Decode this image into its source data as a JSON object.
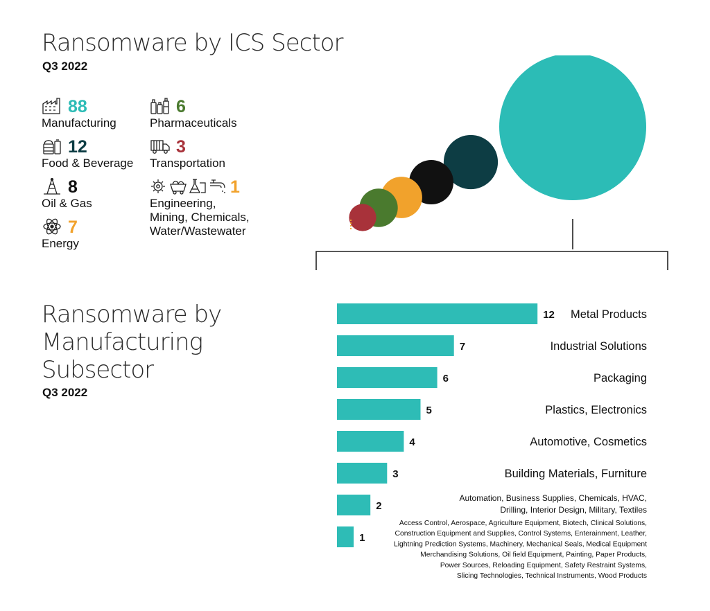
{
  "colors": {
    "teal": "#2cbcb6",
    "dark_teal": "#0d3d44",
    "black": "#111111",
    "green": "#4a7a2e",
    "red": "#a8323a",
    "orange": "#f1a22c",
    "bar": "#2ebcb6"
  },
  "sector_panel": {
    "title": "Ransomware by ICS Sector",
    "subtitle": "Q3 2022",
    "items": [
      {
        "value": "88",
        "name": "Manufacturing",
        "color": "#2cbcb6",
        "icon": "factory-icon"
      },
      {
        "value": "12",
        "name": "Food & Beverage",
        "color": "#0d3d44",
        "icon": "food-icon"
      },
      {
        "value": "8",
        "name": "Oil & Gas",
        "color": "#111111",
        "icon": "oil-rig-icon"
      },
      {
        "value": "7",
        "name": "Energy",
        "color": "#f1a22c",
        "icon": "atom-icon"
      },
      {
        "value": "6",
        "name": "Pharmaceuticals",
        "color": "#4a7a2e",
        "icon": "pharma-icon"
      },
      {
        "value": "3",
        "name": "Transportation",
        "color": "#a8323a",
        "icon": "truck-icon"
      },
      {
        "value": "1",
        "name_lines": [
          "Engineering,",
          "Mining, Chemicals,",
          "Water/Wastewater"
        ],
        "color": "#f1a22c",
        "icon": "engineering-icons"
      }
    ]
  },
  "subsector_panel": {
    "title_lines": [
      "Ransomware by",
      "Manufacturing",
      "Subsector"
    ],
    "subtitle": "Q3 2022"
  },
  "chart_data": [
    {
      "type": "scatter",
      "description_style": "bubble",
      "points": [
        {
          "label": "Manufacturing",
          "value": 88,
          "color": "#2cbcb6"
        },
        {
          "label": "Food & Beverage",
          "value": 12,
          "color": "#0d3d44"
        },
        {
          "label": "Oil & Gas",
          "value": 8,
          "color": "#111111"
        },
        {
          "label": "Energy",
          "value": 7,
          "color": "#f1a22c"
        },
        {
          "label": "Pharmaceuticals",
          "value": 6,
          "color": "#4a7a2e"
        },
        {
          "label": "Transportation",
          "value": 3,
          "color": "#a8323a"
        },
        {
          "label": "Engineering, Mining, Chemicals, Water/Wastewater",
          "value": 1,
          "color": "#f1a22c"
        }
      ]
    },
    {
      "type": "bar",
      "orientation": "horizontal",
      "categories": [
        "Metal Products",
        "Industrial Solutions",
        "Packaging",
        "Plastics, Electronics",
        "Automotive, Cosmetics",
        "Building Materials, Furniture",
        "Automation, Business Supplies, Chemicals, HVAC, Drilling, Interior Design, Military, Textiles",
        "Access Control, Aerospace, Agriculture Equipment, Biotech, Clinical Solutions, Construction Equipment and Supplies, Control Systems, Enterainment, Leather, Lightning Prediction Systems, Machinery, Mechanical Seals, Medical Equipment Merchandising Solutions, Oil field Equipment, Painting, Paper Products, Power Sources, Reloading Equipment, Safety Restraint Systems, Slicing Technologies, Technical Instruments, Wood Products"
      ],
      "values": [
        12,
        7,
        6,
        5,
        4,
        3,
        2,
        1
      ],
      "label_lines": [
        [
          "Metal Products"
        ],
        [
          "Industrial Solutions"
        ],
        [
          "Packaging"
        ],
        [
          "Plastics, Electronics"
        ],
        [
          "Automotive, Cosmetics"
        ],
        [
          "Building Materials, Furniture"
        ],
        [
          "Automation, Business Supplies, Chemicals, HVAC,",
          "Drilling, Interior Design, Military, Textiles"
        ],
        [
          "Access Control, Aerospace, Agriculture Equipment,  Biotech, Clinical Solutions,",
          "Construction Equipment and Supplies, Control Systems, Enterainment, Leather,",
          "Lightning Prediction Systems, Machinery, Mechanical Seals, Medical Equipment",
          "Merchandising Solutions, Oil field Equipment, Painting, Paper Products,",
          "Power Sources, Reloading Equipment, Safety Restraint Systems,",
          "Slicing Technologies, Technical Instruments, Wood Products"
        ]
      ],
      "xlim": [
        0,
        12
      ]
    }
  ]
}
